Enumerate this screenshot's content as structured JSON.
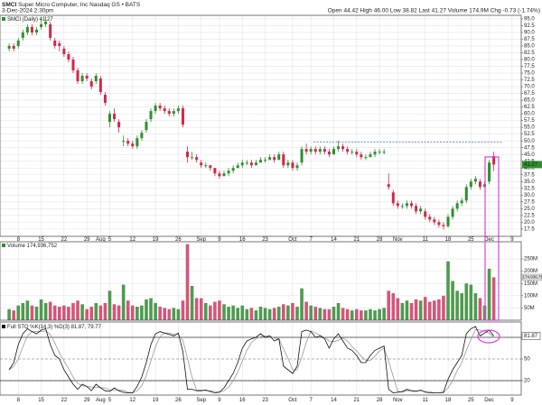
{
  "header": {
    "symbol": "SMCI",
    "name": "Super Micro Computer, Inc  Nasdaq GS • BATS",
    "date": "3-Dec-2024 2:30pm",
    "quote": "Open 44.42  High 46.00  Low 38.82  Last 41.27  Volume 174.9M  Chg -0.73 (-1.74%)"
  },
  "chart_data": [
    {
      "type": "candlestick",
      "legend": "SMCI (Daily) 41.27",
      "up_color": "#2f8f2f",
      "down_color": "#d0284a",
      "xlim": [
        -2,
        112
      ],
      "xticks": [
        {
          "value": 2,
          "label": "8"
        },
        {
          "value": 7,
          "label": "15"
        },
        {
          "value": 12,
          "label": "22"
        },
        {
          "value": 17,
          "label": "29"
        },
        {
          "value": 20,
          "label": "Aug"
        },
        {
          "value": 22,
          "label": "5"
        },
        {
          "value": 27,
          "label": "12"
        },
        {
          "value": 32,
          "label": "19"
        },
        {
          "value": 37,
          "label": "26"
        },
        {
          "value": 42,
          "label": "Sep"
        },
        {
          "value": 46,
          "label": "9"
        },
        {
          "value": 51,
          "label": "16"
        },
        {
          "value": 56,
          "label": "23"
        },
        {
          "value": 62,
          "label": "Oct"
        },
        {
          "value": 66,
          "label": "7"
        },
        {
          "value": 71,
          "label": "14"
        },
        {
          "value": 76,
          "label": "21"
        },
        {
          "value": 81,
          "label": "28"
        },
        {
          "value": 85,
          "label": "Nov"
        },
        {
          "value": 91,
          "label": "11"
        },
        {
          "value": 96,
          "label": "18"
        },
        {
          "value": 101,
          "label": "25"
        },
        {
          "value": 105,
          "label": "Dec"
        },
        {
          "value": 110,
          "label": "9"
        }
      ],
      "ylim": [
        14.8,
        96.3
      ],
      "yticks": [
        {
          "value": 17.5,
          "label": "17.5"
        },
        {
          "value": 20,
          "label": "20.0"
        },
        {
          "value": 22.5,
          "label": "22.5"
        },
        {
          "value": 25,
          "label": "25.0"
        },
        {
          "value": 27.5,
          "label": "27.5"
        },
        {
          "value": 30,
          "label": "30.0"
        },
        {
          "value": 32.5,
          "label": "32.5"
        },
        {
          "value": 35,
          "label": "35.0"
        },
        {
          "value": 37.5,
          "label": "37.5"
        },
        {
          "value": 40,
          "label": "40.0"
        },
        {
          "value": 42.5,
          "label": "42.5"
        },
        {
          "value": 45,
          "label": "45.0"
        },
        {
          "value": 47.5,
          "label": "47.5"
        },
        {
          "value": 50,
          "label": "50.0"
        },
        {
          "value": 52.5,
          "label": "52.5"
        },
        {
          "value": 55,
          "label": "55.0"
        },
        {
          "value": 57.5,
          "label": "57.5"
        },
        {
          "value": 60,
          "label": "60.0"
        },
        {
          "value": 62.5,
          "label": "62.5"
        },
        {
          "value": 65,
          "label": "65.0"
        },
        {
          "value": 67.5,
          "label": "67.5"
        },
        {
          "value": 70,
          "label": "70.0"
        },
        {
          "value": 72.5,
          "label": "72.5"
        },
        {
          "value": 75,
          "label": "75.0"
        },
        {
          "value": 77.5,
          "label": "77.5"
        },
        {
          "value": 80,
          "label": "80.0"
        },
        {
          "value": 82.5,
          "label": "82.5"
        },
        {
          "value": 85,
          "label": "85.0"
        },
        {
          "value": 87.5,
          "label": "87.5"
        },
        {
          "value": 90,
          "label": "90.0"
        },
        {
          "value": 92.5,
          "label": "92.5"
        },
        {
          "value": 95,
          "label": "95.0"
        }
      ],
      "grid": true,
      "hline": {
        "value": 49.5,
        "color": "#3355cc"
      },
      "open": [
        84,
        85,
        85,
        88,
        90,
        92,
        90,
        92,
        93,
        93,
        87,
        86,
        84,
        82,
        80,
        76,
        72,
        74,
        72,
        72,
        73,
        67,
        57,
        60,
        57,
        50,
        50,
        49,
        48,
        51,
        54,
        58,
        61,
        63,
        62,
        61,
        60,
        61,
        62,
        46,
        44,
        44,
        42,
        41,
        41,
        40,
        38,
        37,
        38,
        39,
        40,
        41,
        42,
        42,
        41,
        42,
        43,
        43,
        44,
        43,
        45,
        41,
        42,
        40,
        42,
        47,
        46,
        47,
        46,
        47,
        46,
        45,
        47,
        48,
        47,
        46,
        46,
        45,
        44,
        44,
        45,
        46,
        46,
        34,
        31,
        27,
        26,
        26,
        27,
        26,
        24,
        24,
        22,
        21,
        20,
        19,
        18.5,
        22,
        25,
        27,
        28,
        33,
        35,
        35,
        33,
        35,
        44.42
      ],
      "high": [
        86,
        86,
        88,
        91,
        93,
        93,
        92,
        95,
        96,
        94,
        88,
        87,
        85,
        83,
        81,
        77,
        75,
        75,
        73,
        75,
        74,
        68,
        61,
        62,
        58,
        52,
        51,
        50,
        52,
        54,
        58,
        62,
        64,
        64,
        63,
        62,
        62,
        63,
        63,
        48,
        46,
        45,
        43,
        42,
        41,
        40,
        39,
        39,
        40,
        41,
        42,
        43,
        43,
        43,
        43,
        44,
        44,
        45,
        45,
        46,
        46,
        43,
        43,
        42,
        48,
        49,
        48,
        48,
        48,
        48,
        47,
        48,
        50,
        49,
        48,
        47,
        47,
        46,
        45,
        46,
        47,
        47,
        47,
        38,
        32,
        28,
        27,
        28,
        28,
        27,
        26,
        25,
        23,
        22,
        21,
        20,
        23,
        26,
        28,
        29,
        34,
        36,
        37,
        36,
        35,
        43,
        46
      ],
      "low": [
        83,
        83,
        84,
        87,
        89,
        89,
        89,
        91,
        92,
        87,
        84,
        83,
        81,
        79,
        75,
        71,
        71,
        72,
        69,
        71,
        67,
        63,
        55,
        57,
        53,
        48,
        48,
        47,
        47,
        50,
        53,
        57,
        60,
        61,
        60,
        59,
        59,
        60,
        55,
        42,
        43,
        42,
        40,
        40,
        39,
        37,
        36,
        37,
        37,
        38,
        40,
        40,
        41,
        40,
        41,
        42,
        42,
        43,
        42,
        43,
        40,
        40,
        39,
        39,
        41,
        45,
        45,
        45,
        45,
        45,
        44,
        45,
        46,
        46,
        45,
        45,
        44,
        43,
        43,
        44,
        44,
        45,
        45,
        32,
        26,
        25,
        25,
        25,
        25,
        23,
        23,
        21,
        20,
        19,
        18,
        17.3,
        18,
        21,
        24,
        26,
        27,
        32,
        34,
        32,
        33,
        34,
        38.82
      ],
      "close": [
        85,
        84,
        87,
        90,
        92,
        90,
        91,
        93,
        94,
        88,
        85,
        85,
        82,
        80,
        76,
        72,
        74,
        73,
        70,
        74,
        68,
        64,
        60,
        58,
        55,
        50,
        49,
        48,
        51,
        53,
        57,
        61,
        63,
        62,
        61,
        60,
        61,
        62,
        56,
        44,
        44,
        43,
        41,
        41,
        40,
        38,
        37,
        38,
        39,
        40,
        41,
        42,
        42,
        41,
        42,
        43,
        43,
        44,
        43,
        45,
        41,
        42,
        40,
        41,
        47,
        46,
        47,
        46,
        47,
        46,
        45,
        47,
        48,
        47,
        46,
        46,
        45,
        44,
        44,
        45,
        46,
        46,
        46,
        33,
        27,
        26,
        26,
        27,
        26,
        24,
        25,
        22,
        21,
        20,
        19,
        18.5,
        22,
        25,
        27,
        28,
        33,
        35,
        36,
        33,
        34,
        42,
        41.27
      ]
    },
    {
      "type": "bar",
      "legend": "Volume 174,936,752",
      "last_label": "174,936,752",
      "up_color": "#4f9a4f",
      "down_color": "#d4557a",
      "ylim": [
        0,
        320000000
      ],
      "yticks": [
        {
          "value": 50000000,
          "label": "50M"
        },
        {
          "value": 100000000,
          "label": "100M"
        },
        {
          "value": 150000000,
          "label": "150M"
        },
        {
          "value": 200000000,
          "label": "200M"
        },
        {
          "value": 250000000,
          "label": "250M"
        }
      ],
      "values": [
        45000000.0,
        40000000.0,
        60000000.0,
        70000000.0,
        80000000.0,
        60000000.0,
        55000000.0,
        85000000.0,
        70000000.0,
        75000000.0,
        60000000.0,
        55000000.0,
        60000000.0,
        55000000.0,
        70000000.0,
        80000000.0,
        65000000.0,
        45000000.0,
        55000000.0,
        70000000.0,
        60000000.0,
        70000000.0,
        120000000.0,
        65000000.0,
        60000000.0,
        145000000.0,
        80000000.0,
        60000000.0,
        55000000.0,
        60000000.0,
        85000000.0,
        90000000.0,
        70000000.0,
        55000000.0,
        50000000.0,
        45000000.0,
        50000000.0,
        45000000.0,
        80000000.0,
        310000000.0,
        140000000.0,
        90000000.0,
        90000000.0,
        70000000.0,
        60000000.0,
        75000000.0,
        80000000.0,
        65000000.0,
        55000000.0,
        60000000.0,
        50000000.0,
        60000000.0,
        45000000.0,
        50000000.0,
        40000000.0,
        55000000.0,
        50000000.0,
        45000000.0,
        50000000.0,
        55000000.0,
        65000000.0,
        60000000.0,
        70000000.0,
        55000000.0,
        130000000.0,
        75000000.0,
        60000000.0,
        55000000.0,
        50000000.0,
        45000000.0,
        45000000.0,
        55000000.0,
        70000000.0,
        50000000.0,
        45000000.0,
        40000000.0,
        45000000.0,
        40000000.0,
        40000000.0,
        45000000.0,
        40000000.0,
        45000000.0,
        50000000.0,
        120000000.0,
        110000000.0,
        90000000.0,
        70000000.0,
        80000000.0,
        70000000.0,
        85000000.0,
        80000000.0,
        95000000.0,
        75000000.0,
        80000000.0,
        85000000.0,
        100000000.0,
        240000000.0,
        160000000.0,
        120000000.0,
        110000000.0,
        150000000.0,
        145000000.0,
        110000000.0,
        90000000.0,
        60000000.0,
        210000000.0,
        174936752
      ]
    },
    {
      "type": "line",
      "legend": "Full STO %K(14,3) %D(3) 81.87, 79.77",
      "ylim": [
        0,
        100
      ],
      "yticks": [
        20,
        50
      ],
      "levels": [
        20,
        80
      ],
      "series": [
        {
          "name": "%K(14,3)",
          "color": "#111111",
          "values": [
            35,
            45,
            70,
            85,
            92,
            88,
            85,
            90,
            92,
            70,
            55,
            50,
            35,
            25,
            15,
            8,
            15,
            12,
            6,
            15,
            10,
            6,
            5,
            10,
            6,
            4,
            3,
            3,
            12,
            25,
            45,
            70,
            85,
            88,
            86,
            84,
            82,
            86,
            60,
            8,
            8,
            6,
            6,
            7,
            5,
            3,
            4,
            10,
            20,
            30,
            45,
            65,
            75,
            78,
            80,
            85,
            80,
            82,
            75,
            78,
            40,
            35,
            30,
            40,
            88,
            90,
            88,
            80,
            82,
            78,
            65,
            78,
            85,
            75,
            65,
            62,
            55,
            45,
            45,
            55,
            62,
            65,
            68,
            8,
            3,
            4,
            5,
            8,
            6,
            5,
            7,
            4,
            3,
            3,
            3,
            4,
            22,
            35,
            45,
            55,
            85,
            92,
            95,
            82,
            86,
            90,
            81.87
          ]
        },
        {
          "name": "%D(3)",
          "color": "#999999",
          "values": [
            35,
            40,
            50,
            67,
            82,
            88,
            88,
            88,
            89,
            84,
            72,
            58,
            47,
            37,
            25,
            16,
            13,
            12,
            11,
            11,
            10,
            10,
            7,
            7,
            7,
            7,
            4,
            3,
            6,
            13,
            27,
            47,
            67,
            81,
            86,
            86,
            84,
            84,
            76,
            51,
            25,
            7,
            7,
            6,
            6,
            5,
            4,
            6,
            11,
            20,
            32,
            47,
            62,
            73,
            78,
            81,
            82,
            82,
            79,
            78,
            64,
            51,
            35,
            35,
            53,
            73,
            89,
            86,
            83,
            80,
            75,
            74,
            76,
            79,
            75,
            67,
            61,
            54,
            48,
            48,
            54,
            61,
            65,
            47,
            26,
            5,
            4,
            6,
            6,
            6,
            6,
            5,
            5,
            3,
            3,
            3,
            10,
            20,
            34,
            45,
            62,
            77,
            91,
            90,
            88,
            86,
            79.77
          ]
        }
      ]
    }
  ]
}
